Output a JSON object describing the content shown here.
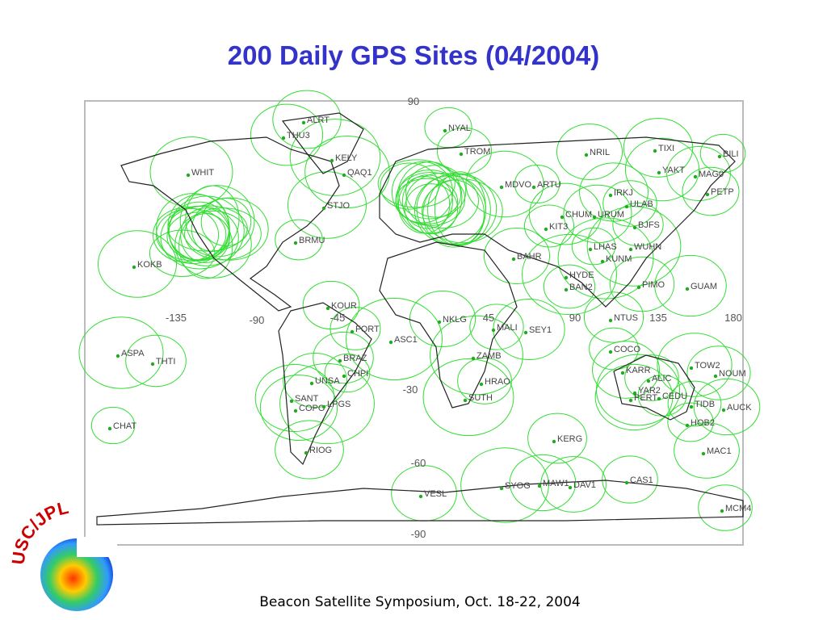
{
  "title": "200 Daily GPS Sites (04/2004)",
  "footer": "Beacon Satellite Symposium, Oct. 18-22, 2004",
  "logo_text": "USC/JPL",
  "map": {
    "graticule_labels": [
      90,
      -135,
      -90,
      -45,
      45,
      90,
      135,
      180,
      -30,
      -60,
      -90
    ],
    "sites": [
      "ALRT",
      "THU3",
      "NYAL",
      "TROM",
      "NRIL",
      "TIXI",
      "BILI",
      "KELY",
      "YAKT",
      "MAG0",
      "PETP",
      "QAQ1",
      "MDVO",
      "ARTU",
      "IRKJ",
      "ULAB",
      "STJO",
      "KIT3",
      "CHUM",
      "URUM",
      "BJFS",
      "LHAS",
      "WUHN",
      "KUNM",
      "BRMU",
      "BAHR",
      "HYDE",
      "BAN2",
      "PIMO",
      "GUAM",
      "KOKB",
      "KOUR",
      "FORT",
      "ASC1",
      "NKLG",
      "MALI",
      "SEY1",
      "NTUS",
      "COCO",
      "ASPA",
      "THTI",
      "BRAZ",
      "CHPI",
      "ZAMB",
      "HRAO",
      "SUTH",
      "KARR",
      "ALIC",
      "TOW2",
      "NOUM",
      "YAR2",
      "PERT",
      "CEDU",
      "TIDB",
      "AUCK",
      "HOB2",
      "CHAT",
      "UNSA",
      "SANT",
      "COPO",
      "LPGS",
      "KERG",
      "MAC1",
      "RIOG",
      "VESL",
      "SYOG",
      "MAW1",
      "DAV1",
      "CAS1",
      "MCM4",
      "WHIT"
    ]
  }
}
